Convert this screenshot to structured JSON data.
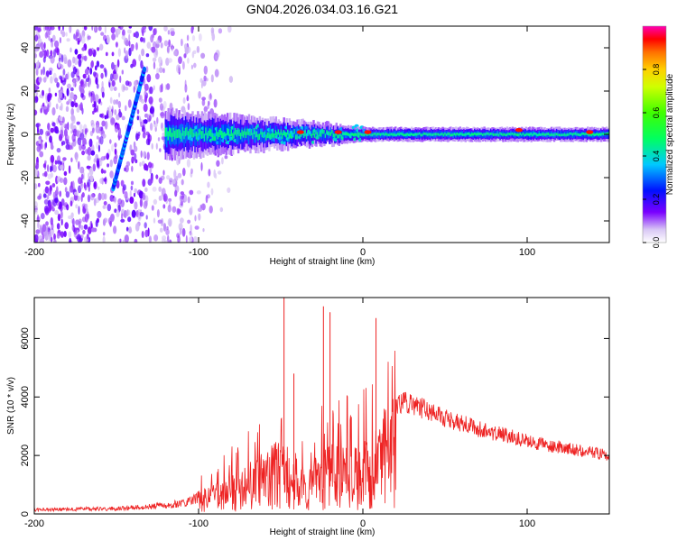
{
  "title": "GN04.2026.034.03.16.G21",
  "chart_data": [
    {
      "type": "heatmap",
      "xlabel": "Height of straight line (km)",
      "ylabel": "Frequency (Hz)",
      "xlim": [
        -200,
        150
      ],
      "ylim": [
        -50,
        50
      ],
      "xticks": [
        -200,
        -100,
        0,
        100
      ],
      "xtick_labels": [
        "-200",
        "-100",
        "0",
        "100"
      ],
      "yticks": [
        -40,
        -20,
        0,
        20,
        40
      ],
      "ytick_labels": [
        "-40",
        "-20",
        "0",
        "20",
        "40"
      ],
      "colorbar": {
        "label": "Normalized spectral amplitude",
        "range": [
          0,
          1
        ],
        "ticks": [
          0.0,
          0.2,
          0.4,
          0.6,
          0.8
        ],
        "tick_labels": [
          "0.0",
          "0.2",
          "0.4",
          "0.6",
          "0.8"
        ]
      },
      "features": {
        "noise_region_x": [
          -200,
          -80
        ],
        "diagonal_track": {
          "x": [
            -152,
            -133
          ],
          "y": [
            -25,
            30
          ]
        },
        "main_band": {
          "x": [
            -120,
            150
          ],
          "y_center": 0,
          "width_hz": [
            14,
            4
          ]
        },
        "hot_spots": [
          {
            "x": -38,
            "y": 1
          },
          {
            "x": -15,
            "y": 1
          },
          {
            "x": 3,
            "y": 1
          },
          {
            "x": 95,
            "y": 2
          },
          {
            "x": 138,
            "y": 1
          }
        ]
      }
    },
    {
      "type": "line",
      "xlabel": "Height of straight line (km)",
      "ylabel": "SNR (10 * v/v)",
      "xlim": [
        -200,
        150
      ],
      "ylim": [
        0,
        7400
      ],
      "xticks": [
        -200,
        -100,
        0,
        100
      ],
      "xtick_labels": [
        "-200",
        "-100",
        "0",
        "100"
      ],
      "yticks": [
        0,
        2000,
        4000,
        6000
      ],
      "ytick_labels": [
        "0",
        "2000",
        "4000",
        "6000"
      ],
      "series": [
        {
          "name": "SNR",
          "color": "#ee2222",
          "x": [
            -200,
            -150,
            -120,
            -105,
            -95,
            -85,
            -75,
            -65,
            -55,
            -45,
            -35,
            -25,
            -15,
            -5,
            5,
            15,
            25,
            35,
            50,
            70,
            90,
            110,
            130,
            150
          ],
          "y": [
            200,
            250,
            400,
            600,
            1000,
            1200,
            1500,
            2000,
            2500,
            2500,
            1500,
            2200,
            2500,
            2300,
            2800,
            3900,
            4200,
            4000,
            3600,
            3200,
            2900,
            2600,
            2400,
            2200
          ]
        }
      ],
      "spikes": [
        {
          "x": -48,
          "y": 7400
        },
        {
          "x": -24,
          "y": 7100
        },
        {
          "x": -20,
          "y": 6900
        },
        {
          "x": 8,
          "y": 6700
        },
        {
          "x": -42,
          "y": 4800
        }
      ]
    }
  ]
}
